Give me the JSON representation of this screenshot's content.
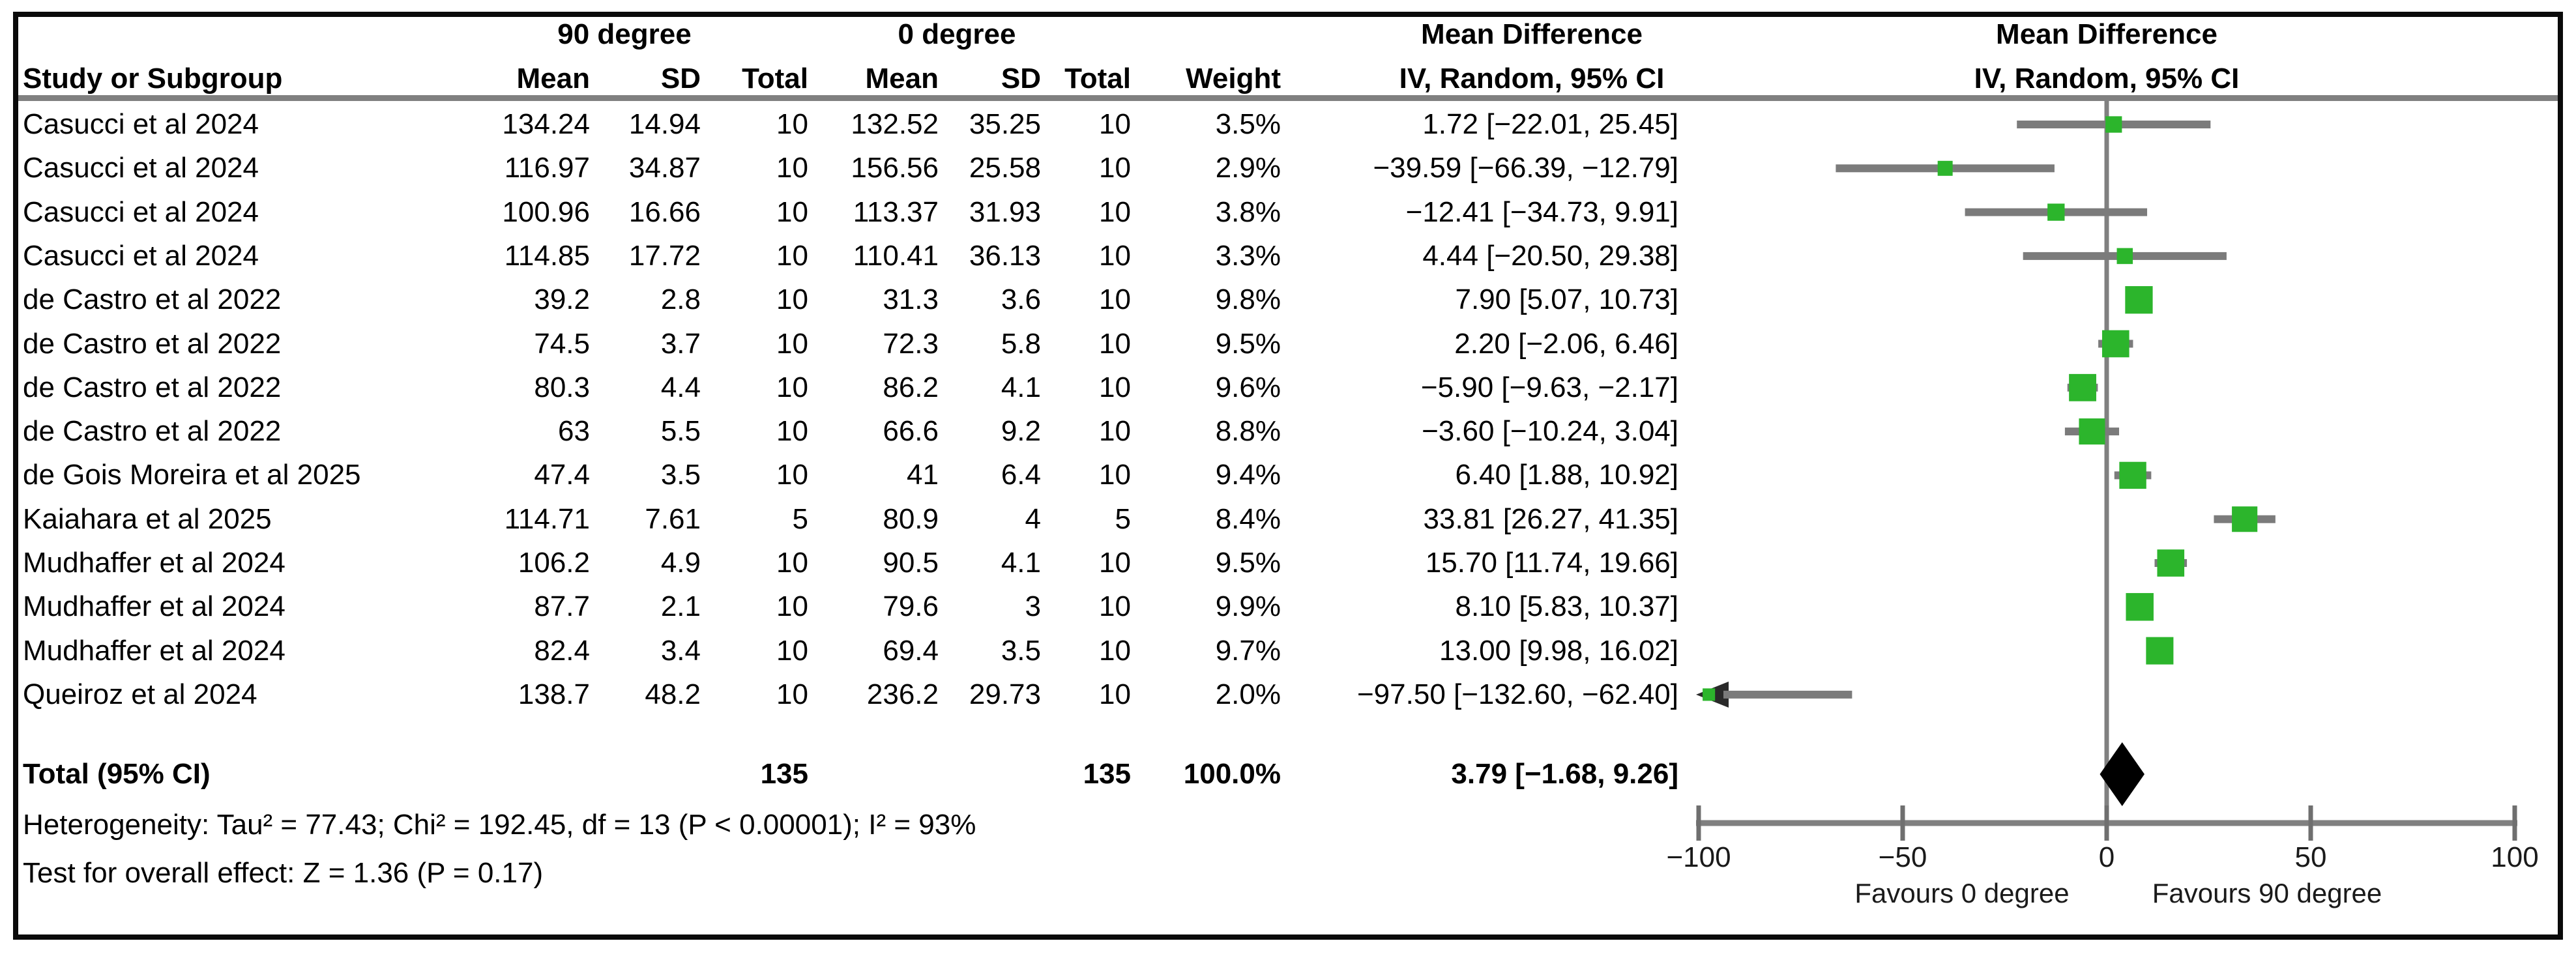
{
  "header": {
    "study": "Study or Subgroup",
    "group1": "90 degree",
    "group2": "0 degree",
    "mean": "Mean",
    "sd": "SD",
    "total": "Total",
    "weight": "Weight",
    "md_title": "Mean Difference",
    "method": "IV, Random, 95% CI"
  },
  "totals": {
    "label": "Total (95% CI)",
    "n90": "135",
    "n0": "135",
    "weight": "100.0%",
    "ci_text": "3.79 [−1.68, 9.26]"
  },
  "footnotes": {
    "heterogeneity": "Heterogeneity: Tau² = 77.43; Chi² = 192.45, df = 13 (P < 0.00001); I² = 93%",
    "overall": "Test for overall effect: Z = 1.36 (P = 0.17)"
  },
  "axis": {
    "favours_left": "Favours 0 degree",
    "favours_right": "Favours 90 degree"
  },
  "colors": {
    "ci_line": "#7b7b7b",
    "separator": "#808080",
    "axis": "#808080",
    "tick": "#6f6f6f",
    "marker_green": "#2cb52c",
    "diamond": "#000000",
    "arrow": "#2a2a2a"
  },
  "chart_data": {
    "type": "forest",
    "effect_label": "Mean Difference",
    "method": "IV, Random, 95% CI",
    "x_range": [
      -100,
      100
    ],
    "x_ticks": [
      -100,
      -50,
      0,
      50,
      100
    ],
    "x_tick_labels": [
      "−100",
      "−50",
      "0",
      "50",
      "100"
    ],
    "favours": {
      "left": "Favours 0 degree",
      "right": "Favours 90 degree"
    },
    "studies": [
      {
        "name": "Casucci et al 2024",
        "mean_90": "134.24",
        "sd_90": "14.94",
        "n_90": "10",
        "mean_0": "132.52",
        "sd_0": "35.25",
        "n_0": "10",
        "weight": "3.5%",
        "weight_pct": 3.5,
        "md": 1.72,
        "ci_low": -22.01,
        "ci_high": 25.45,
        "ci_text": "1.72 [−22.01, 25.45]"
      },
      {
        "name": "Casucci et al 2024",
        "mean_90": "116.97",
        "sd_90": "34.87",
        "n_90": "10",
        "mean_0": "156.56",
        "sd_0": "25.58",
        "n_0": "10",
        "weight": "2.9%",
        "weight_pct": 2.9,
        "md": -39.59,
        "ci_low": -66.39,
        "ci_high": -12.79,
        "ci_text": "−39.59 [−66.39, −12.79]"
      },
      {
        "name": "Casucci et al 2024",
        "mean_90": "100.96",
        "sd_90": "16.66",
        "n_90": "10",
        "mean_0": "113.37",
        "sd_0": "31.93",
        "n_0": "10",
        "weight": "3.8%",
        "weight_pct": 3.8,
        "md": -12.41,
        "ci_low": -34.73,
        "ci_high": 9.91,
        "ci_text": "−12.41 [−34.73, 9.91]"
      },
      {
        "name": "Casucci et al 2024",
        "mean_90": "114.85",
        "sd_90": "17.72",
        "n_90": "10",
        "mean_0": "110.41",
        "sd_0": "36.13",
        "n_0": "10",
        "weight": "3.3%",
        "weight_pct": 3.3,
        "md": 4.44,
        "ci_low": -20.5,
        "ci_high": 29.38,
        "ci_text": "4.44 [−20.50, 29.38]"
      },
      {
        "name": "de Castro et al 2022",
        "mean_90": "39.2",
        "sd_90": "2.8",
        "n_90": "10",
        "mean_0": "31.3",
        "sd_0": "3.6",
        "n_0": "10",
        "weight": "9.8%",
        "weight_pct": 9.8,
        "md": 7.9,
        "ci_low": 5.07,
        "ci_high": 10.73,
        "ci_text": "7.90 [5.07, 10.73]"
      },
      {
        "name": "de Castro et al 2022",
        "mean_90": "74.5",
        "sd_90": "3.7",
        "n_90": "10",
        "mean_0": "72.3",
        "sd_0": "5.8",
        "n_0": "10",
        "weight": "9.5%",
        "weight_pct": 9.5,
        "md": 2.2,
        "ci_low": -2.06,
        "ci_high": 6.46,
        "ci_text": "2.20 [−2.06, 6.46]"
      },
      {
        "name": "de Castro et al 2022",
        "mean_90": "80.3",
        "sd_90": "4.4",
        "n_90": "10",
        "mean_0": "86.2",
        "sd_0": "4.1",
        "n_0": "10",
        "weight": "9.6%",
        "weight_pct": 9.6,
        "md": -5.9,
        "ci_low": -9.63,
        "ci_high": -2.17,
        "ci_text": "−5.90 [−9.63, −2.17]"
      },
      {
        "name": "de Castro et al 2022",
        "mean_90": "63",
        "sd_90": "5.5",
        "n_90": "10",
        "mean_0": "66.6",
        "sd_0": "9.2",
        "n_0": "10",
        "weight": "8.8%",
        "weight_pct": 8.8,
        "md": -3.6,
        "ci_low": -10.24,
        "ci_high": 3.04,
        "ci_text": "−3.60 [−10.24, 3.04]"
      },
      {
        "name": "de Gois Moreira et al 2025",
        "mean_90": "47.4",
        "sd_90": "3.5",
        "n_90": "10",
        "mean_0": "41",
        "sd_0": "6.4",
        "n_0": "10",
        "weight": "9.4%",
        "weight_pct": 9.4,
        "md": 6.4,
        "ci_low": 1.88,
        "ci_high": 10.92,
        "ci_text": "6.40 [1.88, 10.92]"
      },
      {
        "name": "Kaiahara et al 2025",
        "mean_90": "114.71",
        "sd_90": "7.61",
        "n_90": "5",
        "mean_0": "80.9",
        "sd_0": "4",
        "n_0": "5",
        "weight": "8.4%",
        "weight_pct": 8.4,
        "md": 33.81,
        "ci_low": 26.27,
        "ci_high": 41.35,
        "ci_text": "33.81 [26.27, 41.35]"
      },
      {
        "name": "Mudhaffer et al 2024",
        "mean_90": "106.2",
        "sd_90": "4.9",
        "n_90": "10",
        "mean_0": "90.5",
        "sd_0": "4.1",
        "n_0": "10",
        "weight": "9.5%",
        "weight_pct": 9.5,
        "md": 15.7,
        "ci_low": 11.74,
        "ci_high": 19.66,
        "ci_text": "15.70 [11.74, 19.66]"
      },
      {
        "name": "Mudhaffer et al 2024",
        "mean_90": "87.7",
        "sd_90": "2.1",
        "n_90": "10",
        "mean_0": "79.6",
        "sd_0": "3",
        "n_0": "10",
        "weight": "9.9%",
        "weight_pct": 9.9,
        "md": 8.1,
        "ci_low": 5.83,
        "ci_high": 10.37,
        "ci_text": "8.10 [5.83, 10.37]"
      },
      {
        "name": "Mudhaffer et al 2024",
        "mean_90": "82.4",
        "sd_90": "3.4",
        "n_90": "10",
        "mean_0": "69.4",
        "sd_0": "3.5",
        "n_0": "10",
        "weight": "9.7%",
        "weight_pct": 9.7,
        "md": 13.0,
        "ci_low": 9.98,
        "ci_high": 16.02,
        "ci_text": "13.00 [9.98, 16.02]"
      },
      {
        "name": "Queiroz et al 2024",
        "mean_90": "138.7",
        "sd_90": "48.2",
        "n_90": "10",
        "mean_0": "236.2",
        "sd_0": "29.73",
        "n_0": "10",
        "weight": "2.0%",
        "weight_pct": 2.0,
        "md": -97.5,
        "ci_low": -132.6,
        "ci_high": -62.4,
        "ci_text": "−97.50 [−132.60, −62.40]"
      }
    ],
    "total": {
      "label": "Total (95% CI)",
      "n_90": 135,
      "n_0": 135,
      "weight_pct": 100.0,
      "md": 3.79,
      "ci_low": -1.68,
      "ci_high": 9.26
    },
    "heterogeneity": "Heterogeneity: Tau² = 77.43; Chi² = 192.45, df = 13 (P < 0.00001); I² = 93%",
    "overall_effect": "Test for overall effect: Z = 1.36 (P = 0.17)"
  }
}
